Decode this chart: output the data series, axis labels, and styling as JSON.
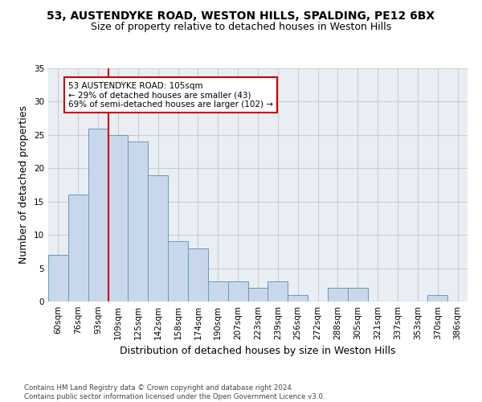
{
  "title_line1": "53, AUSTENDYKE ROAD, WESTON HILLS, SPALDING, PE12 6BX",
  "title_line2": "Size of property relative to detached houses in Weston Hills",
  "xlabel": "Distribution of detached houses by size in Weston Hills",
  "ylabel": "Number of detached properties",
  "footnote": "Contains HM Land Registry data © Crown copyright and database right 2024.\nContains public sector information licensed under the Open Government Licence v3.0.",
  "bin_labels": [
    "60sqm",
    "76sqm",
    "93sqm",
    "109sqm",
    "125sqm",
    "142sqm",
    "158sqm",
    "174sqm",
    "190sqm",
    "207sqm",
    "223sqm",
    "239sqm",
    "256sqm",
    "272sqm",
    "288sqm",
    "305sqm",
    "321sqm",
    "337sqm",
    "353sqm",
    "370sqm",
    "386sqm"
  ],
  "bar_values": [
    7,
    16,
    26,
    25,
    24,
    19,
    9,
    8,
    3,
    3,
    2,
    3,
    1,
    0,
    2,
    2,
    0,
    0,
    0,
    1,
    0
  ],
  "bar_color": "#c8d8ea",
  "bar_edgecolor": "#6699bb",
  "vline_color": "#cc0000",
  "annotation_text": "53 AUSTENDYKE ROAD: 105sqm\n← 29% of detached houses are smaller (43)\n69% of semi-detached houses are larger (102) →",
  "annotation_box_facecolor": "white",
  "annotation_box_edgecolor": "#cc0000",
  "ylim": [
    0,
    35
  ],
  "yticks": [
    0,
    5,
    10,
    15,
    20,
    25,
    30,
    35
  ],
  "grid_color": "#cccccc",
  "bg_color": "#e8eef4",
  "title_fontsize": 10,
  "subtitle_fontsize": 9,
  "axis_label_fontsize": 9,
  "tick_fontsize": 7.5
}
